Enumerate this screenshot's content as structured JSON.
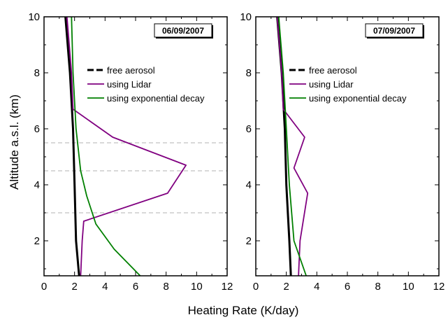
{
  "chart_data": {
    "type": "line",
    "xlabel": "Heating Rate (K/day)",
    "ylabel": "Altitude a.s.l. (km)",
    "xlim": [
      0,
      12
    ],
    "ylim": [
      0.75,
      10
    ],
    "xticks": [
      0,
      2,
      4,
      6,
      8,
      10,
      12
    ],
    "yticks": [
      2,
      4,
      6,
      8,
      10
    ],
    "panels": [
      {
        "date": "06/09/2007",
        "reference_lines_y": [
          3.0,
          4.5,
          5.5
        ],
        "series": [
          {
            "name": "free aerosol",
            "color": "#000000",
            "style": "solid-thick",
            "points": [
              [
                1.4,
                10
              ],
              [
                1.7,
                8
              ],
              [
                1.9,
                6
              ],
              [
                2.0,
                4
              ],
              [
                2.1,
                2
              ],
              [
                2.3,
                0.75
              ]
            ]
          },
          {
            "name": "using Lidar",
            "color": "#800080",
            "style": "solid",
            "points": [
              [
                1.5,
                10
              ],
              [
                1.8,
                8
              ],
              [
                1.9,
                6.7
              ],
              [
                4.5,
                5.7
              ],
              [
                9.3,
                4.7
              ],
              [
                8.1,
                3.7
              ],
              [
                2.6,
                2.7
              ],
              [
                2.5,
                2.0
              ],
              [
                2.4,
                0.75
              ]
            ]
          },
          {
            "name": "using exponential decay",
            "color": "#008000",
            "style": "solid",
            "points": [
              [
                1.8,
                10
              ],
              [
                1.9,
                8
              ],
              [
                2.1,
                6
              ],
              [
                2.4,
                4.5
              ],
              [
                2.8,
                3.6
              ],
              [
                3.4,
                2.6
              ],
              [
                4.6,
                1.7
              ],
              [
                6.3,
                0.75
              ]
            ]
          }
        ]
      },
      {
        "date": "07/09/2007",
        "reference_lines_y": [],
        "series": [
          {
            "name": "free aerosol",
            "color": "#000000",
            "style": "solid-thick",
            "points": [
              [
                1.4,
                10
              ],
              [
                1.7,
                8
              ],
              [
                1.9,
                6
              ],
              [
                2.0,
                4
              ],
              [
                2.2,
                2
              ],
              [
                2.3,
                0.75
              ]
            ]
          },
          {
            "name": "using Lidar",
            "color": "#800080",
            "style": "solid",
            "points": [
              [
                1.4,
                10
              ],
              [
                1.7,
                8
              ],
              [
                1.8,
                6.7
              ],
              [
                3.2,
                5.7
              ],
              [
                2.5,
                4.6
              ],
              [
                3.4,
                3.7
              ],
              [
                2.9,
                2.0
              ],
              [
                2.8,
                0.75
              ]
            ]
          },
          {
            "name": "using exponential decay",
            "color": "#008000",
            "style": "solid",
            "points": [
              [
                1.5,
                10
              ],
              [
                1.8,
                8
              ],
              [
                2.0,
                6
              ],
              [
                2.2,
                4
              ],
              [
                2.5,
                2.0
              ],
              [
                3.3,
                0.75
              ]
            ]
          }
        ]
      }
    ]
  }
}
